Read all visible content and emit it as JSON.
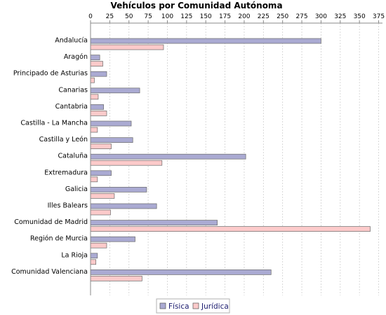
{
  "chart_data": {
    "type": "bar",
    "orientation": "horizontal",
    "title": "Vehículos por Comunidad Autónoma",
    "xlabel": "",
    "ylabel": "",
    "xlim": [
      0,
      380
    ],
    "x_ticks": [
      0,
      25,
      50,
      75,
      100,
      125,
      150,
      175,
      200,
      225,
      250,
      275,
      300,
      325,
      350,
      375
    ],
    "x_axis_position": "top",
    "grid": true,
    "legend_position": "bottom-center",
    "categories": [
      "Andalucía",
      "Aragón",
      "Principado de Asturias",
      "Canarias",
      "Cantabria",
      "Castilla - La Mancha",
      "Castilla y León",
      "Cataluña",
      "Extremadura",
      "Galicia",
      "Illes Balears",
      "Comunidad de Madrid",
      "Región de Murcia",
      "La Rioja",
      "Comunidad Valenciana"
    ],
    "series": [
      {
        "name": "Física",
        "color": "#aaaad2",
        "values": [
          300,
          12,
          21,
          64,
          17,
          53,
          55,
          202,
          27,
          73,
          86,
          165,
          58,
          9,
          235
        ]
      },
      {
        "name": "Jurídica",
        "color": "#fccaca",
        "values": [
          95,
          16,
          5,
          10,
          21,
          9,
          27,
          93,
          9,
          31,
          26,
          364,
          21,
          7,
          67
        ]
      }
    ]
  }
}
